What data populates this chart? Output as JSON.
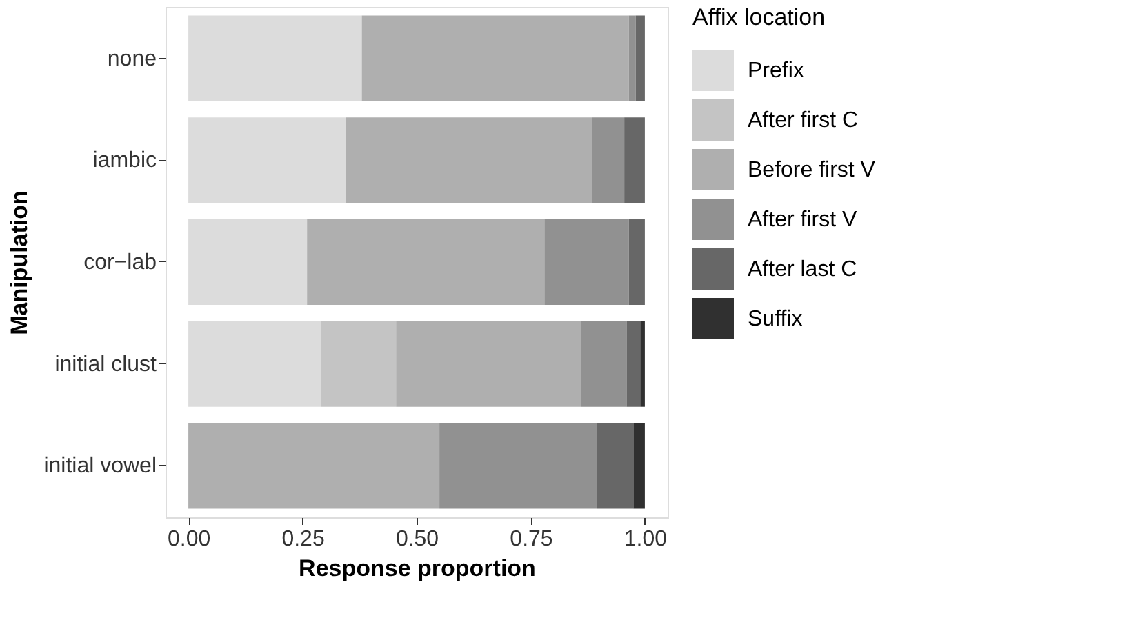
{
  "chart_data": {
    "type": "bar",
    "orientation": "horizontal",
    "stacked": true,
    "xlabel": "Response proportion",
    "ylabel": "Manipulation",
    "legend_title": "Affix location",
    "legend": "right",
    "categories": [
      "none",
      "iambic",
      "cor−lab",
      "initial clust",
      "initial vowel"
    ],
    "xlim": [
      -0.05,
      1.05
    ],
    "xticks": [
      {
        "value": 0,
        "label": "0.00"
      },
      {
        "value": 0.25,
        "label": "0.25"
      },
      {
        "value": 0.5,
        "label": "0.50"
      },
      {
        "value": 0.75,
        "label": "0.75"
      },
      {
        "value": 1,
        "label": "1.00"
      }
    ],
    "grid": false,
    "series": [
      {
        "name": "Prefix",
        "color": "#dcdcdc",
        "values": [
          0.38,
          0.345,
          0.26,
          0.29,
          0
        ]
      },
      {
        "name": "After first C",
        "color": "#c4c4c4",
        "values": [
          0,
          0,
          0,
          0.165,
          0
        ]
      },
      {
        "name": "Before first V",
        "color": "#afafaf",
        "values": [
          0.585,
          0.54,
          0.52,
          0.405,
          0.55
        ]
      },
      {
        "name": "After first V",
        "color": "#919191",
        "values": [
          0.015,
          0.07,
          0.185,
          0.1,
          0.345
        ]
      },
      {
        "name": "After last C",
        "color": "#676767",
        "values": [
          0.02,
          0.045,
          0.035,
          0.03,
          0.08
        ]
      },
      {
        "name": "Suffix",
        "color": "#303030",
        "values": [
          0,
          0,
          0,
          0.01,
          0.025
        ]
      }
    ]
  }
}
